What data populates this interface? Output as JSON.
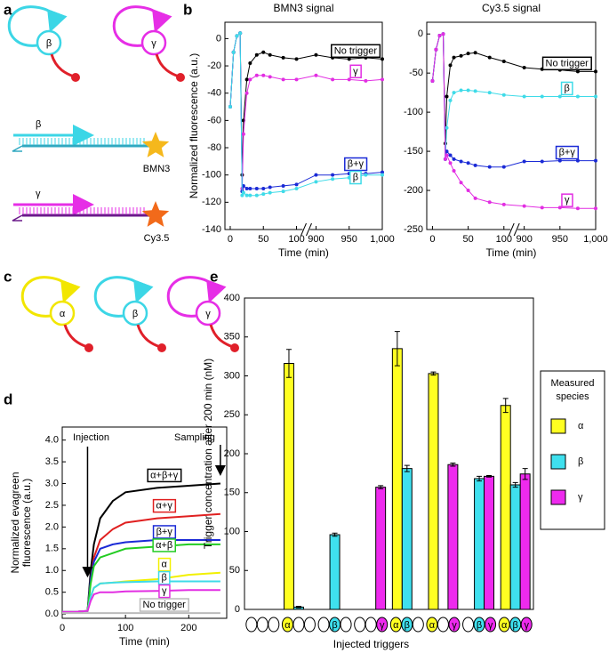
{
  "panels": [
    "a",
    "b",
    "c",
    "d",
    "e"
  ],
  "diagram_a": {
    "loops": [
      "β",
      "γ"
    ],
    "strands": [
      {
        "label": "β",
        "dye": "BMN3"
      },
      {
        "label": "γ",
        "dye": "Cy3.5"
      }
    ]
  },
  "diagram_c": {
    "loops": [
      "α",
      "β",
      "γ"
    ]
  },
  "chart_data": [
    {
      "type": "line",
      "title": "BMN3 signal",
      "xlabel": "Time (min)",
      "ylabel": "Normalized fluorescence (a.u.)",
      "x": [
        0,
        5,
        10,
        15,
        18,
        20,
        25,
        30,
        40,
        50,
        60,
        80,
        100,
        900,
        925,
        950,
        975,
        1000
      ],
      "xlim": [
        -8,
        1000
      ],
      "xbreak": [
        108,
        892
      ],
      "xticks": [
        0,
        50,
        100,
        900,
        950,
        {
          "value": 1000,
          "label": "1,000"
        }
      ],
      "ylim": [
        -140,
        12
      ],
      "yticks": [
        -140,
        -120,
        -100,
        -80,
        -60,
        -40,
        -20,
        0
      ],
      "markers": true,
      "series": [
        {
          "name": "No trigger",
          "color": "#000000",
          "values": [
            -50,
            -10,
            2,
            4,
            -100,
            -60,
            -30,
            -18,
            -12,
            -10,
            -12,
            -14,
            -15,
            -12,
            -14,
            -15,
            -14,
            -15
          ]
        },
        {
          "name": "γ",
          "color": "#e22ee2",
          "values": [
            -50,
            -10,
            2,
            4,
            -110,
            -70,
            -40,
            -30,
            -27,
            -27,
            -28,
            -30,
            -30,
            -27,
            -30,
            -30,
            -31,
            -30
          ]
        },
        {
          "name": "β+γ",
          "color": "#1a2ad6",
          "values": [
            -50,
            -10,
            2,
            4,
            -112,
            -108,
            -110,
            -110,
            -110,
            -110,
            -109,
            -108,
            -107,
            -100,
            -100,
            -99,
            -99,
            -98
          ]
        },
        {
          "name": "β",
          "color": "#3fdbe8",
          "values": [
            -50,
            -10,
            2,
            4,
            -115,
            -113,
            -115,
            -115,
            -115,
            -114,
            -113,
            -112,
            -110,
            -105,
            -103,
            -102,
            -100,
            -100
          ]
        }
      ]
    },
    {
      "type": "line",
      "title": "Cy3.5 signal",
      "xlabel": "Time (min)",
      "x": [
        0,
        5,
        10,
        15,
        18,
        20,
        25,
        30,
        40,
        50,
        60,
        80,
        100,
        900,
        925,
        950,
        975,
        1000
      ],
      "xlim": [
        -8,
        1000
      ],
      "xbreak": [
        108,
        892
      ],
      "xticks": [
        0,
        50,
        100,
        900,
        950,
        {
          "value": 1000,
          "label": "1,000"
        }
      ],
      "ylim": [
        -250,
        15
      ],
      "yticks": [
        -250,
        -200,
        -150,
        -100,
        -50,
        0
      ],
      "markers": true,
      "series": [
        {
          "name": "No trigger",
          "color": "#000000",
          "values": [
            -60,
            -20,
            -2,
            0,
            -140,
            -80,
            -40,
            -30,
            -28,
            -25,
            -24,
            -30,
            -35,
            -43,
            -45,
            -46,
            -48,
            -48
          ]
        },
        {
          "name": "β",
          "color": "#3fdbe8",
          "values": [
            -60,
            -20,
            -2,
            0,
            -160,
            -120,
            -85,
            -75,
            -72,
            -72,
            -73,
            -75,
            -78,
            -80,
            -80,
            -80,
            -80,
            -80
          ]
        },
        {
          "name": "β+γ",
          "color": "#1a2ad6",
          "values": [
            -60,
            -20,
            -2,
            0,
            -160,
            -150,
            -155,
            -160,
            -163,
            -165,
            -168,
            -170,
            -170,
            -163,
            -163,
            -162,
            -162,
            -162
          ]
        },
        {
          "name": "γ",
          "color": "#e22ee2",
          "values": [
            -60,
            -20,
            -2,
            0,
            -160,
            -155,
            -165,
            -175,
            -190,
            -200,
            -210,
            -215,
            -218,
            -220,
            -222,
            -222,
            -223,
            -223
          ]
        }
      ]
    },
    {
      "type": "line",
      "xlabel": "Time (min)",
      "ylabel": [
        "Normalized evagreen",
        "fluorescence (a.u.)"
      ],
      "x": [
        0,
        20,
        40,
        45,
        50,
        60,
        80,
        100,
        150,
        200,
        250
      ],
      "xlim": [
        0,
        260
      ],
      "xticks": [
        0,
        100,
        200
      ],
      "ylim": [
        -0.1,
        4.3
      ],
      "yticks": [
        {
          "value": 0,
          "label": "0.0"
        },
        {
          "value": 0.5,
          "label": "0.5"
        },
        {
          "value": 1,
          "label": "1.0"
        },
        {
          "value": 1.5,
          "label": "1.5"
        },
        {
          "value": 2,
          "label": "2.0"
        },
        {
          "value": 2.5,
          "label": "2.5"
        },
        {
          "value": 3,
          "label": "3.0"
        },
        {
          "value": 3.5,
          "label": "3.5"
        },
        {
          "value": 4,
          "label": "4.0"
        }
      ],
      "annotations": [
        {
          "text": "Injection",
          "x": 40
        },
        {
          "text": "Sampling",
          "x": 250
        }
      ],
      "series": [
        {
          "name": "α+β+γ",
          "color": "#000000",
          "values": [
            0.05,
            0.05,
            0.07,
            1.0,
            1.6,
            2.2,
            2.6,
            2.8,
            2.9,
            2.95,
            3.0
          ]
        },
        {
          "name": "α+γ",
          "color": "#e02020",
          "values": [
            0.05,
            0.05,
            0.07,
            0.8,
            1.3,
            1.7,
            1.95,
            2.1,
            2.2,
            2.25,
            2.3
          ]
        },
        {
          "name": "β+γ",
          "color": "#1a2ad6",
          "values": [
            0.05,
            0.05,
            0.07,
            0.8,
            1.2,
            1.5,
            1.6,
            1.65,
            1.7,
            1.7,
            1.7
          ]
        },
        {
          "name": "α+β",
          "color": "#22cc22",
          "values": [
            0.05,
            0.05,
            0.07,
            0.7,
            1.1,
            1.3,
            1.4,
            1.5,
            1.55,
            1.6,
            1.6
          ]
        },
        {
          "name": "α",
          "color": "#f2f000",
          "values": [
            0.05,
            0.05,
            0.07,
            0.4,
            0.6,
            0.7,
            0.72,
            0.75,
            0.8,
            0.9,
            0.95
          ]
        },
        {
          "name": "β",
          "color": "#3fdbe8",
          "values": [
            0.05,
            0.05,
            0.07,
            0.4,
            0.6,
            0.7,
            0.72,
            0.73,
            0.75,
            0.75,
            0.75
          ]
        },
        {
          "name": "γ",
          "color": "#e22ee2",
          "values": [
            0.05,
            0.05,
            0.07,
            0.3,
            0.45,
            0.5,
            0.5,
            0.52,
            0.53,
            0.55,
            0.55
          ]
        },
        {
          "name": "No trigger",
          "color": "#bbbbbb",
          "values": [
            0.02,
            0.02,
            0.02,
            0.02,
            0.02,
            0.02,
            0.02,
            0.02,
            0.02,
            0.02,
            0.02
          ]
        }
      ]
    },
    {
      "type": "bar",
      "xlabel": "Injected triggers",
      "ylabel": "Trigger concentration after 200 min (nM)",
      "legend_title": "Measured species",
      "legend": "right",
      "categories": [
        [],
        [
          "α"
        ],
        [
          "β"
        ],
        [
          "γ"
        ],
        [
          "α",
          "β"
        ],
        [
          "α",
          "γ"
        ],
        [
          "β",
          "γ"
        ],
        [
          "α",
          "β",
          "γ"
        ]
      ],
      "ylim": [
        0,
        400
      ],
      "yticks": [
        0,
        50,
        100,
        150,
        200,
        250,
        300,
        350,
        400
      ],
      "series": [
        {
          "name": "α",
          "color": "#ffff22",
          "values": [
            0,
            316,
            0,
            0,
            335,
            303,
            0,
            262
          ],
          "errors": [
            0,
            18,
            0,
            0,
            22,
            2,
            0,
            9
          ]
        },
        {
          "name": "β",
          "color": "#3fe0ee",
          "values": [
            0,
            3,
            96,
            0,
            181,
            0,
            168,
            160
          ],
          "errors": [
            0,
            1,
            2,
            0,
            4,
            0,
            3,
            3
          ]
        },
        {
          "name": "γ",
          "color": "#ee2aee",
          "values": [
            0,
            0,
            0,
            157,
            0,
            186,
            171,
            174
          ],
          "errors": [
            0,
            0,
            0,
            2,
            0,
            2,
            1,
            7
          ]
        }
      ]
    }
  ]
}
